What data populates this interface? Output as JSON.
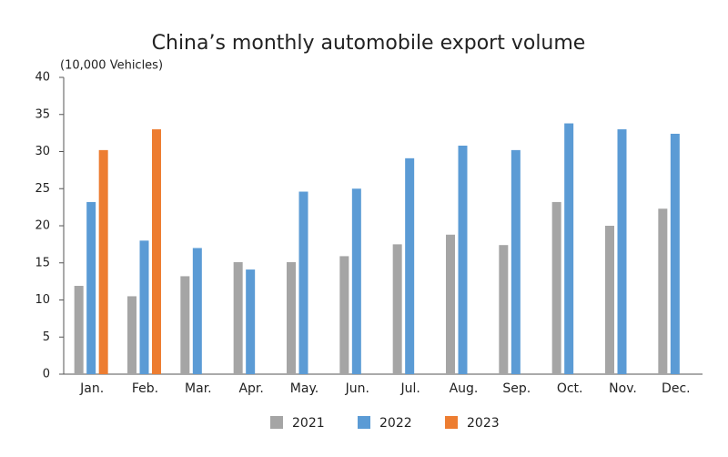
{
  "chart_data": {
    "type": "bar",
    "title": "China’s monthly automobile export volume",
    "y_label": "(10,000 Vehicles)",
    "categories": [
      "Jan.",
      "Feb.",
      "Mar.",
      "Apr.",
      "May.",
      "Jun.",
      "Jul.",
      "Aug.",
      "Sep.",
      "Oct.",
      "Nov.",
      "Dec."
    ],
    "series": [
      {
        "name": "2021",
        "color": "#a5a5a5",
        "values": [
          11.9,
          10.5,
          13.2,
          15.1,
          15.1,
          15.9,
          17.5,
          18.8,
          17.4,
          23.2,
          20.0,
          22.3
        ]
      },
      {
        "name": "2022",
        "color": "#5b9bd5",
        "values": [
          23.2,
          18.0,
          17.0,
          14.1,
          24.6,
          25.0,
          29.1,
          30.8,
          30.2,
          33.8,
          33.0,
          32.4
        ]
      },
      {
        "name": "2023",
        "color": "#ed7d31",
        "values": [
          30.2,
          33.0,
          null,
          null,
          null,
          null,
          null,
          null,
          null,
          null,
          null,
          null
        ]
      }
    ],
    "ylim": [
      0,
      40
    ],
    "yticks": [
      0,
      5,
      10,
      15,
      20,
      25,
      30,
      35,
      40
    ],
    "legend": "bottom"
  }
}
